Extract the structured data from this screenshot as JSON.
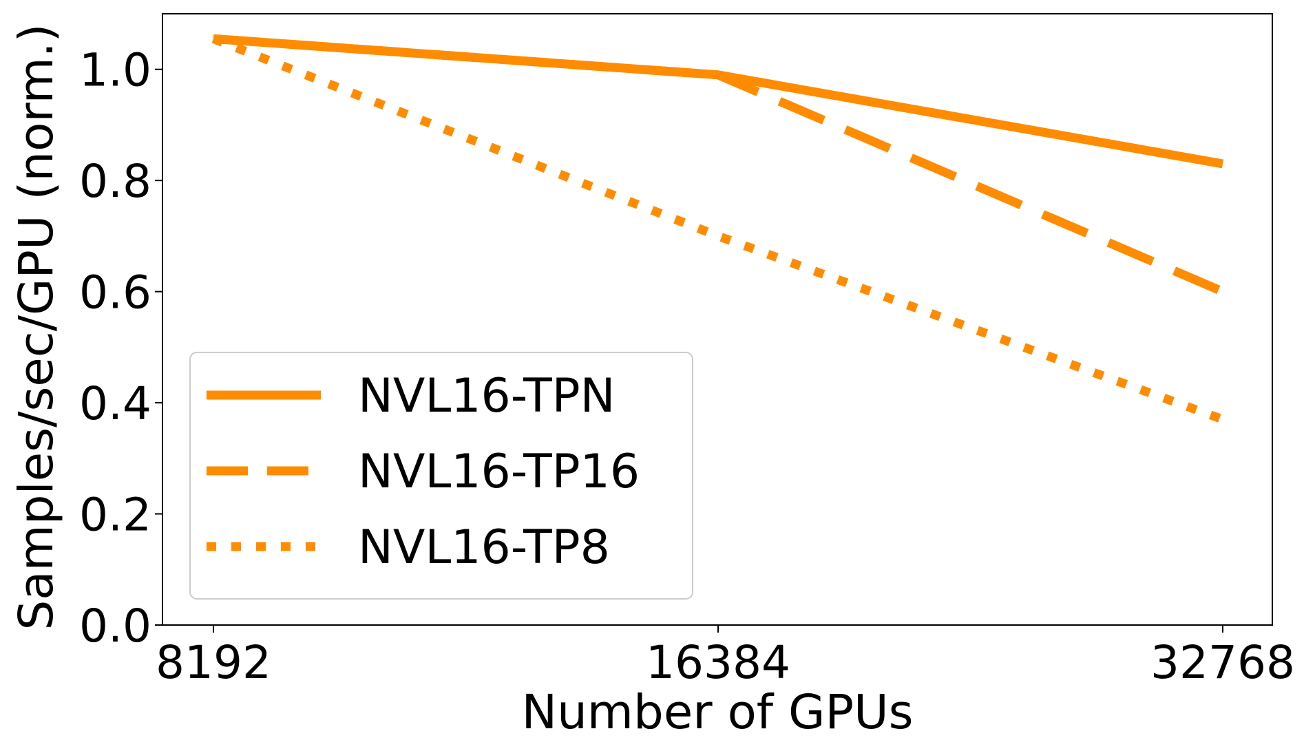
{
  "chart_data": {
    "type": "line",
    "x": [
      8192,
      16384,
      32768
    ],
    "x_tick_labels": [
      "8192",
      "16384",
      "32768"
    ],
    "y_ticks": [
      0.0,
      0.2,
      0.4,
      0.6,
      0.8,
      1.0
    ],
    "y_tick_labels": [
      "0.0",
      "0.2",
      "0.4",
      "0.6",
      "0.8",
      "1.0"
    ],
    "xlabel": "Number of GPUs",
    "ylabel": "Samples/sec/GPU (norm.)",
    "ylim": [
      0.0,
      1.1
    ],
    "x_scale": "log2",
    "grid": false,
    "legend_position": "lower-left",
    "series": [
      {
        "name": "NVL16-TPN",
        "style": "solid",
        "color": "#ff8c00",
        "values": [
          1.055,
          0.99,
          0.83
        ]
      },
      {
        "name": "NVL16-TP16",
        "style": "dashed",
        "color": "#ff8c00",
        "values": [
          1.055,
          0.99,
          0.6
        ]
      },
      {
        "name": "NVL16-TP8",
        "style": "dotted",
        "color": "#ff8c00",
        "values": [
          1.055,
          0.7,
          0.37
        ]
      }
    ]
  }
}
